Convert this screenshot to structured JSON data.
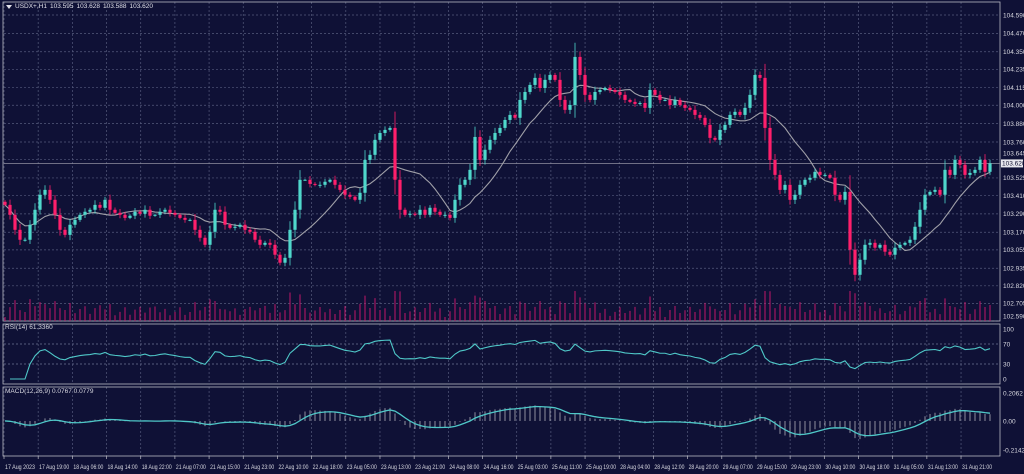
{
  "chart_data": {
    "type": "candlestick",
    "header": {
      "symbol": "USDX+,H1",
      "open": "103.595",
      "high": "103.628",
      "low": "103.588",
      "close": "103.620"
    },
    "current_price": "103.620",
    "price_ticks": [
      "104.590",
      "104.470",
      "104.350",
      "104.235",
      "104.115",
      "104.000",
      "103.880",
      "103.760",
      "103.645",
      "103.525",
      "103.410",
      "103.290",
      "103.170",
      "103.055",
      "102.935",
      "102.820",
      "102.705",
      "102.590"
    ],
    "ylim": [
      102.59,
      104.59
    ],
    "time_labels": [
      "17 Aug 2023",
      "17 Aug 19:00",
      "18 Aug 06:00",
      "18 Aug 14:00",
      "18 Aug 22:00",
      "21 Aug 07:00",
      "21 Aug 15:00",
      "21 Aug 23:00",
      "22 Aug 10:00",
      "22 Aug 18:00",
      "23 Aug 05:00",
      "23 Aug 13:00",
      "23 Aug 21:00",
      "24 Aug 08:00",
      "24 Aug 16:00",
      "25 Aug 03:00",
      "25 Aug 11:00",
      "25 Aug 19:00",
      "28 Aug 04:00",
      "28 Aug 12:00",
      "28 Aug 20:00",
      "29 Aug 07:00",
      "29 Aug 15:00",
      "29 Aug 23:00",
      "30 Aug 10:00",
      "30 Aug 18:00",
      "31 Aug 05:00",
      "31 Aug 13:00",
      "31 Aug 21:00"
    ],
    "closes": [
      103.349,
      103.284,
      103.186,
      103.121,
      103.121,
      103.219,
      103.317,
      103.415,
      103.447,
      103.382,
      103.284,
      103.186,
      103.153,
      103.219,
      103.251,
      103.284,
      103.304,
      103.317,
      103.349,
      103.33,
      103.382,
      103.317,
      103.297,
      103.284,
      103.264,
      103.278,
      103.304,
      103.291,
      103.317,
      103.278,
      103.284,
      103.304,
      103.317,
      103.297,
      103.284,
      103.264,
      103.251,
      103.251,
      103.186,
      103.134,
      103.088,
      103.173,
      103.317,
      103.304,
      103.219,
      103.199,
      103.206,
      103.219,
      103.186,
      103.173,
      103.121,
      103.088,
      103.101,
      103.088,
      103.023,
      102.971,
      103.003,
      103.186,
      103.317,
      103.513,
      103.513,
      103.486,
      103.48,
      103.48,
      103.5,
      103.513,
      103.48,
      103.447,
      103.415,
      103.402,
      103.382,
      103.428,
      103.643,
      103.676,
      103.774,
      103.819,
      103.839,
      103.852,
      103.513,
      103.317,
      103.284,
      103.291,
      103.284,
      103.317,
      103.284,
      103.33,
      103.304,
      103.284,
      103.284,
      103.264,
      103.382,
      103.48,
      103.513,
      103.578,
      103.793,
      103.643,
      103.709,
      103.774,
      103.819,
      103.852,
      103.904,
      103.937,
      103.918,
      104.035,
      104.087,
      104.133,
      104.179,
      104.113,
      104.166,
      104.198,
      104.166,
      104.035,
      103.97,
      104.002,
      104.316,
      104.198,
      104.068,
      104.035,
      104.087,
      104.1,
      104.113,
      104.1,
      104.087,
      104.068,
      104.035,
      104.022,
      104.009,
      104.015,
      103.983,
      104.1,
      104.068,
      104.035,
      104.035,
      104.002,
      104.035,
      104.002,
      103.983,
      103.97,
      103.937,
      103.918,
      103.872,
      103.787,
      103.774,
      103.839,
      103.872,
      103.937,
      103.957,
      103.937,
      103.983,
      104.068,
      104.198,
      104.179,
      103.852,
      103.643,
      103.545,
      103.447,
      103.48,
      103.382,
      103.415,
      103.48,
      103.513,
      103.526,
      103.565,
      103.545,
      103.545,
      103.526,
      103.415,
      103.382,
      103.434,
      103.056,
      102.892,
      102.99,
      103.088,
      103.101,
      103.069,
      103.088,
      103.043,
      103.023,
      103.069,
      103.088,
      103.101,
      103.121,
      103.206,
      103.317,
      103.415,
      103.434,
      103.447,
      103.415,
      103.578,
      103.545,
      103.643,
      103.611,
      103.545,
      103.558,
      103.578,
      103.643,
      103.565,
      103.62
    ],
    "rsi": {
      "label": "RSI(14) 61.3360",
      "ticks": [
        "100",
        "70",
        "30",
        "0"
      ],
      "levels": [
        70,
        30
      ]
    },
    "macd": {
      "label": "MACD(12,26,9) 0.0767 0.0779",
      "ticks": [
        "0.2062",
        "0.00",
        "-0.2142"
      ],
      "range": [
        -0.2142,
        0.2062
      ]
    },
    "colors": {
      "background": "#0f1136",
      "bull": "#4fd8cc",
      "bear": "#ff1f6b",
      "ma": "#a0a0a8",
      "grid": "#555a7c",
      "volume": "#c0186a",
      "indicator": "#4fc8c8"
    }
  }
}
